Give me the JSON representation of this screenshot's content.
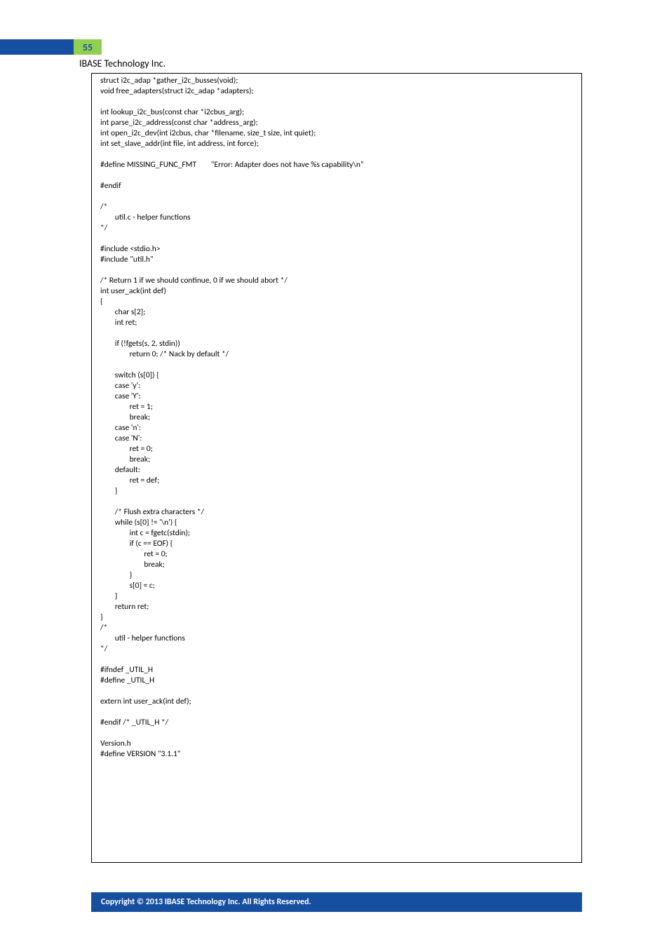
{
  "page": {
    "number": "55",
    "company": "IBASE Technology Inc.",
    "footer": "Copyright © 2013 IBASE Technology Inc. All Rights Reserved.",
    "colors": {
      "accent_blue": "#164fa0",
      "accent_green": "#91cf50",
      "background": "#ffffff",
      "text": "#000000",
      "footer_text": "#ffffff",
      "border": "#000000"
    }
  },
  "code": {
    "lines": [
      "struct i2c_adap *gather_i2c_busses(void);",
      "void free_adapters(struct i2c_adap *adapters);",
      "",
      "int lookup_i2c_bus(const char *i2cbus_arg);",
      "int parse_i2c_address(const char *address_arg);",
      "int open_i2c_dev(int i2cbus, char *filename, size_t size, int quiet);",
      "int set_slave_addr(int file, int address, int force);",
      "",
      "#define MISSING_FUNC_FMT        \"Error: Adapter does not have %s capability\\n\"",
      "",
      "#endif",
      "",
      "/*",
      "        util.c - helper functions",
      "*/",
      "",
      "#include <stdio.h>",
      "#include \"util.h\"",
      "",
      "/* Return 1 if we should continue, 0 if we should abort */",
      "int user_ack(int def)",
      "{",
      "        char s[2];",
      "        int ret;",
      "",
      "        if (!fgets(s, 2, stdin))",
      "                return 0; /* Nack by default */",
      "",
      "        switch (s[0]) {",
      "        case 'y':",
      "        case 'Y':",
      "                ret = 1;",
      "                break;",
      "        case 'n':",
      "        case 'N':",
      "                ret = 0;",
      "                break;",
      "        default:",
      "                ret = def;",
      "        }",
      "",
      "        /* Flush extra characters */",
      "        while (s[0] != '\\n') {",
      "                int c = fgetc(stdin);",
      "                if (c == EOF) {",
      "                        ret = 0;",
      "                        break;",
      "                }",
      "                s[0] = c;",
      "        }",
      "        return ret;",
      "}",
      "/*",
      "        util - helper functions",
      "*/",
      "",
      "#ifndef _UTIL_H",
      "#define _UTIL_H",
      "",
      "extern int user_ack(int def);",
      "",
      "#endif /* _UTIL_H */",
      "",
      "Version.h",
      "#define VERSION \"3.1.1\"",
      ""
    ]
  }
}
